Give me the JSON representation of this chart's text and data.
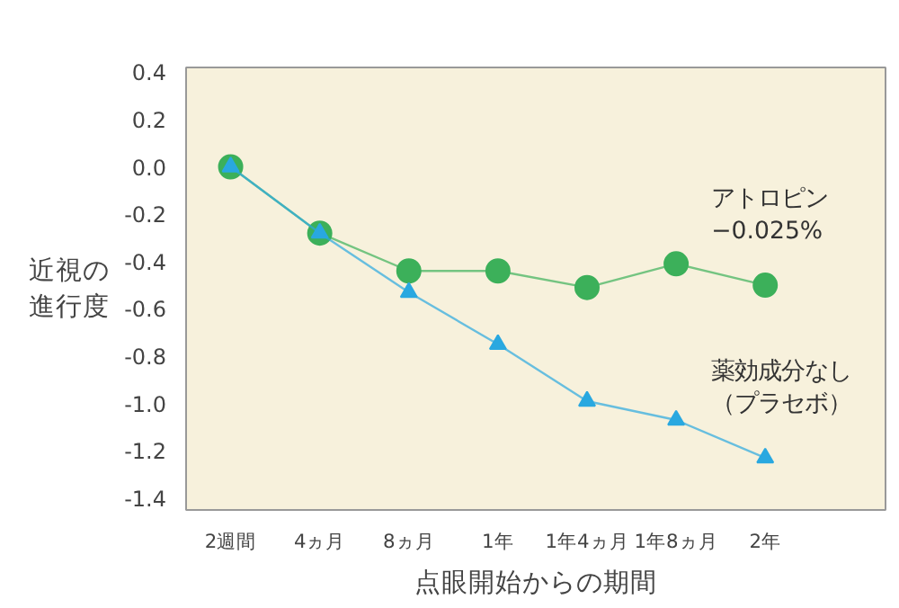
{
  "chart_data": {
    "type": "line",
    "xlabel": "点眼開始からの期間",
    "ylabel": "近視の進行度",
    "categories": [
      "2週間",
      "4ヵ月",
      "8ヵ月",
      "1年",
      "1年4ヵ月",
      "1年8ヵ月",
      "2年"
    ],
    "series": [
      {
        "name": "アトロピン\n−0.025%",
        "color": "#3cb05a",
        "marker": "circle",
        "values": [
          0.0,
          -0.28,
          -0.44,
          -0.44,
          -0.51,
          -0.41,
          -0.5
        ]
      },
      {
        "name": "薬効成分なし（プラセボ）",
        "color": "#29a8e0",
        "marker": "triangle",
        "values": [
          0.0,
          -0.28,
          -0.53,
          -0.75,
          -0.99,
          -1.07,
          -1.23
        ]
      }
    ],
    "ylim": [
      -1.45,
      0.42
    ],
    "yticks": [
      0.4,
      0.2,
      {
        "value": 0,
        "label": "0.0"
      },
      -0.2,
      -0.4,
      -0.6,
      -0.8,
      {
        "value": -1,
        "label": "-1.0"
      },
      -1.2,
      -1.4
    ],
    "grid": false,
    "legend": false
  }
}
